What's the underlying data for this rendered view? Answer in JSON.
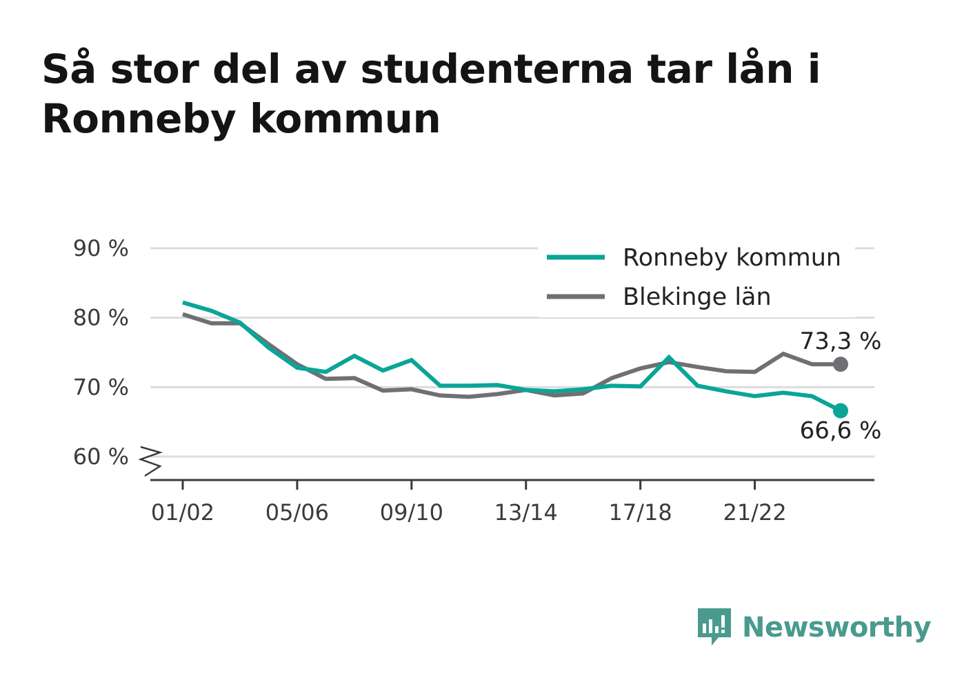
{
  "title": "Så stor del av studenterna tar lån i Ronneby kommun",
  "colors": {
    "ronneby": "#0aa597",
    "blekinge": "#6f6f74",
    "grid": "#dcdcdc",
    "axis": "#3a3a3a",
    "logo": "#4a9a8e"
  },
  "legend": [
    {
      "label": "Ronneby kommun",
      "series": "ronneby"
    },
    {
      "label": "Blekinge län",
      "series": "blekinge"
    }
  ],
  "logo_text": "Newsworthy",
  "chart_data": {
    "type": "line",
    "x": [
      "01/02",
      "02/03",
      "03/04",
      "04/05",
      "05/06",
      "06/07",
      "07/08",
      "08/09",
      "09/10",
      "10/11",
      "11/12",
      "12/13",
      "13/14",
      "14/15",
      "15/16",
      "16/17",
      "17/18",
      "18/19",
      "19/20",
      "20/21",
      "21/22",
      "22/23",
      "23/24",
      "24/25"
    ],
    "x_tick_labels": [
      "01/02",
      "05/06",
      "09/10",
      "13/14",
      "17/18",
      "21/22"
    ],
    "y_ticks": [
      60,
      70,
      80,
      90
    ],
    "y_tick_labels": [
      "60 %",
      "70 %",
      "80 %",
      "90 %"
    ],
    "ylim": [
      56.5,
      91
    ],
    "y_axis_break": true,
    "grid": true,
    "legend_position": "top-right",
    "series": [
      {
        "key": "ronneby",
        "name": "Ronneby kommun",
        "values": [
          82.2,
          81.0,
          79.3,
          75.7,
          72.8,
          72.2,
          74.5,
          72.4,
          73.9,
          70.2,
          70.2,
          70.3,
          69.6,
          69.4,
          69.7,
          70.2,
          70.1,
          74.3,
          70.2,
          69.4,
          68.7,
          69.2,
          68.7,
          66.6
        ],
        "end_label": "66,6 %"
      },
      {
        "key": "blekinge",
        "name": "Blekinge län",
        "values": [
          80.5,
          79.2,
          79.2,
          76.2,
          73.3,
          71.2,
          71.3,
          69.5,
          69.7,
          68.8,
          68.6,
          69.0,
          69.6,
          68.8,
          69.1,
          71.3,
          72.7,
          73.6,
          72.9,
          72.3,
          72.2,
          74.8,
          73.3,
          73.3
        ],
        "end_label": "73,3 %"
      }
    ]
  }
}
